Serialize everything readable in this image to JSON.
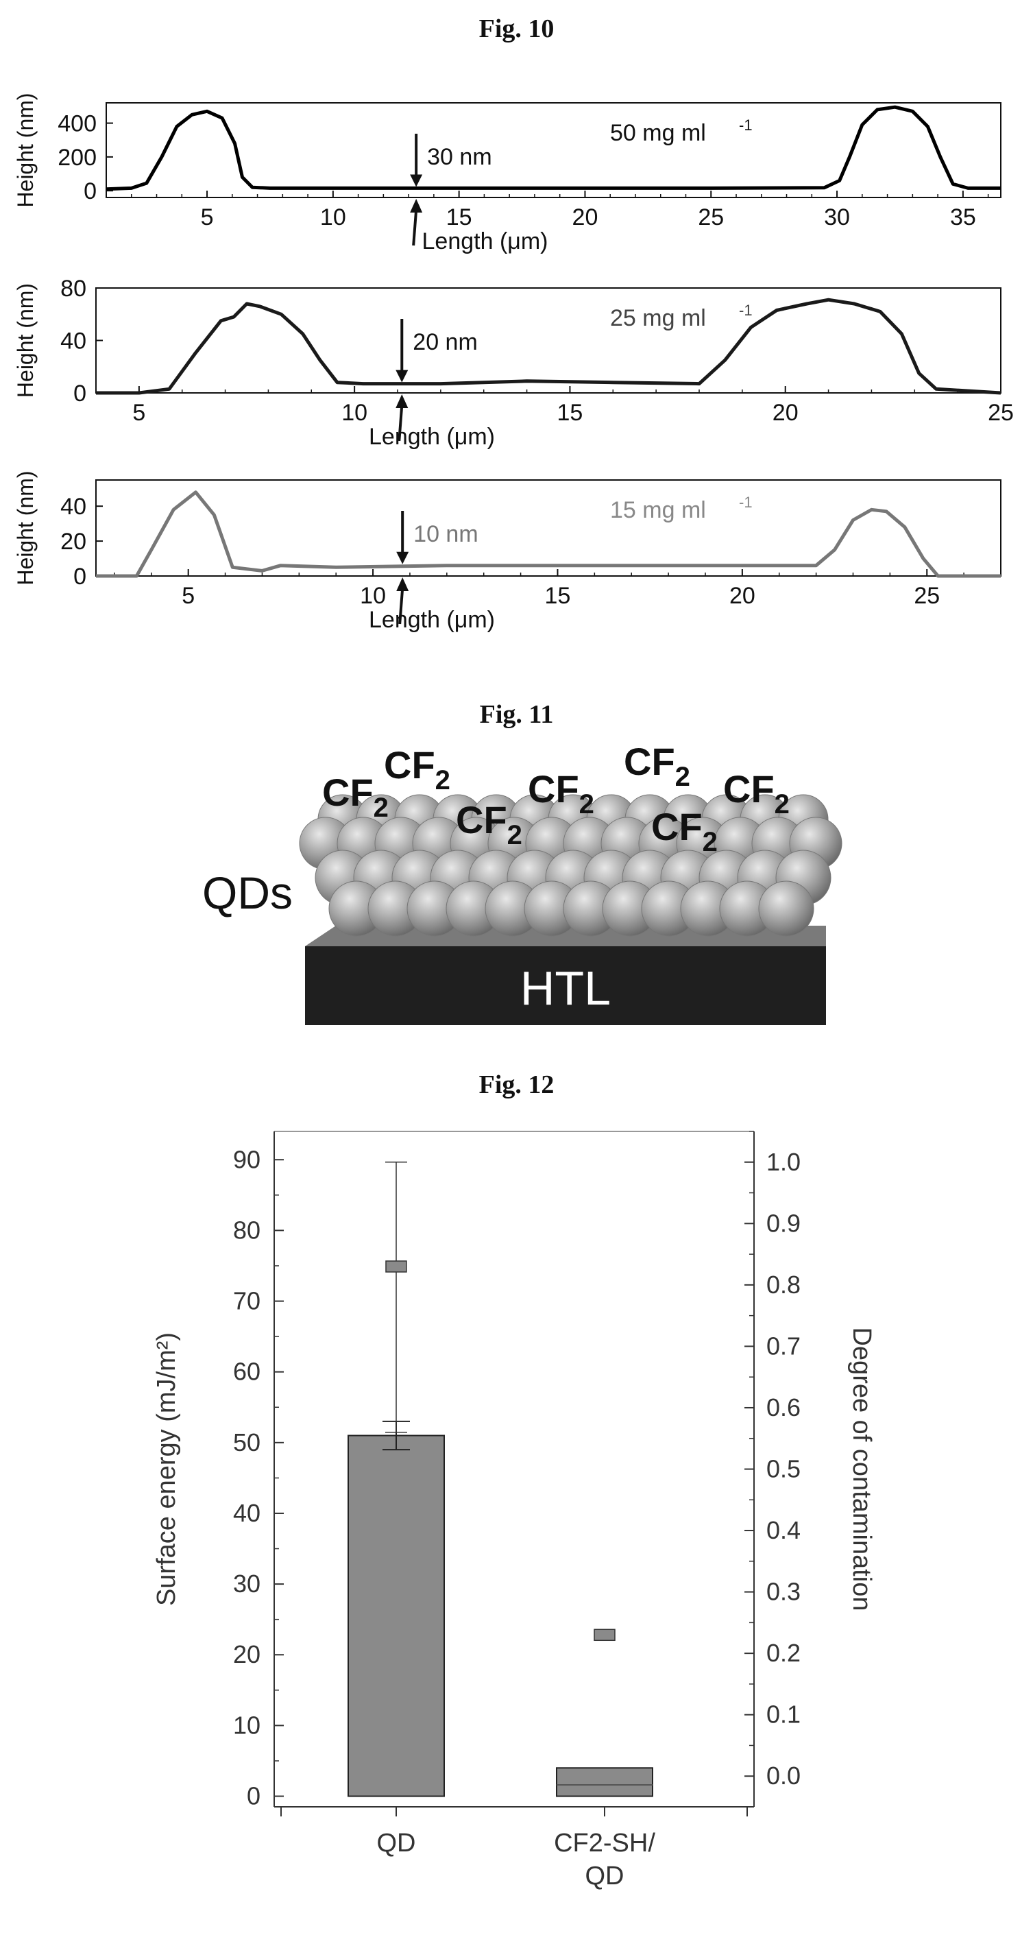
{
  "figures": {
    "fig10_title": "Fig. 10",
    "fig11_title": "Fig. 11",
    "fig12_title": "Fig. 12"
  },
  "chart_data": [
    {
      "type": "line",
      "ylabel": "Height (nm)",
      "xlabel": "Length (μm)",
      "annotation_conc": "50 mg ml",
      "annotation_exp": "-1",
      "thickness_label": "30 nm",
      "marker_x": 13.3,
      "xlim": [
        1,
        36.5
      ],
      "ylim": [
        -40,
        520
      ],
      "xticks": [
        5,
        10,
        15,
        20,
        25,
        30,
        35
      ],
      "yticks": [
        0,
        200,
        400
      ],
      "line_color": "#000000",
      "series": [
        {
          "x": [
            1,
            2,
            2.6,
            3.2,
            3.8,
            4.4,
            5,
            5.6,
            6.1,
            6.4,
            6.8,
            7.5,
            10,
            15,
            20,
            25,
            29.5,
            30.1,
            30.5,
            31,
            31.6,
            32.3,
            33,
            33.6,
            34.1,
            34.6,
            35.2,
            36.5
          ],
          "y": [
            10,
            15,
            45,
            200,
            380,
            450,
            470,
            430,
            280,
            80,
            20,
            15,
            15,
            15,
            15,
            15,
            18,
            60,
            200,
            390,
            480,
            495,
            470,
            380,
            200,
            40,
            15,
            15
          ]
        }
      ]
    },
    {
      "type": "line",
      "ylabel": "Height (nm)",
      "xlabel": "Length (μm)",
      "annotation_conc": "25 mg ml",
      "annotation_exp": "-1",
      "thickness_label": "20 nm",
      "marker_x": 11.1,
      "xlim": [
        4,
        25
      ],
      "ylim": [
        0,
        80
      ],
      "xticks": [
        5,
        10,
        15,
        20,
        25
      ],
      "yticks": [
        0,
        40,
        80
      ],
      "line_color": "#1a1a1a",
      "series": [
        {
          "x": [
            4,
            5,
            5.7,
            6.3,
            6.9,
            7.2,
            7.5,
            7.8,
            8.3,
            8.8,
            9.2,
            9.6,
            10.2,
            12,
            14,
            16,
            18,
            18.6,
            19.2,
            19.8,
            20.5,
            21,
            21.6,
            22.2,
            22.7,
            23.1,
            23.5,
            25
          ],
          "y": [
            0,
            0,
            3,
            30,
            55,
            58,
            68,
            66,
            60,
            45,
            25,
            8,
            7,
            7,
            9,
            8,
            7,
            25,
            50,
            63,
            68,
            71,
            68,
            62,
            45,
            15,
            3,
            0
          ]
        }
      ]
    },
    {
      "type": "line",
      "ylabel": "Height (nm)",
      "xlabel": "Length (μm)",
      "annotation_conc": "15 mg ml",
      "annotation_exp": "-1",
      "thickness_label": "10 nm",
      "marker_x": 10.8,
      "xlim": [
        2.5,
        27
      ],
      "ylim": [
        0,
        55
      ],
      "xticks": [
        5,
        10,
        15,
        20,
        25
      ],
      "yticks": [
        0,
        20,
        40
      ],
      "line_color": "#777777",
      "series": [
        {
          "x": [
            2.5,
            3.6,
            4,
            4.6,
            5.2,
            5.7,
            6.2,
            7,
            7.5,
            9,
            12,
            15,
            18,
            20,
            22,
            22.5,
            23,
            23.5,
            23.9,
            24.4,
            24.9,
            25.3,
            27
          ],
          "y": [
            0,
            0,
            15,
            38,
            48,
            35,
            5,
            3,
            6,
            5,
            6,
            6,
            6,
            6,
            6,
            15,
            32,
            38,
            37,
            28,
            10,
            0,
            0
          ]
        }
      ]
    },
    {
      "type": "bar",
      "categories": [
        "QD",
        "CF2-SH/\nQD"
      ],
      "category_lines": [
        [
          "QD"
        ],
        [
          "CF2-SH/",
          "QD"
        ]
      ],
      "values": [
        51,
        4
      ],
      "errors": [
        2,
        0
      ],
      "ylabel": "Surface energy (mJ/m²)",
      "y2label": "Degree of contamination",
      "ylim": [
        -1.5,
        94
      ],
      "yticks": [
        0,
        10,
        20,
        30,
        40,
        50,
        60,
        70,
        80,
        90
      ],
      "y2ticks": [
        0.0,
        0.1,
        0.2,
        0.3,
        0.4,
        0.5,
        0.6,
        0.7,
        0.8,
        0.9,
        1.0
      ],
      "y2_ticks_text": [
        "0.0",
        "0.1",
        "0.2",
        "0.3",
        "0.4",
        "0.5",
        "0.6",
        "0.7",
        "0.8",
        "0.9",
        "1.0"
      ],
      "y2lim": [
        -0.05,
        1.05
      ],
      "secondary_series": {
        "values": [
          0.83,
          0.23
        ],
        "errors_low": [
          0.27,
          0
        ],
        "errors_high": [
          0.17,
          0
        ]
      },
      "bar_color": "#8a8a8a",
      "marker_color": "#8a8a8a"
    }
  ],
  "fig11": {
    "qd_label": "QDs",
    "htl_label": "HTL",
    "ligand_main": "CF",
    "ligand_sub": "2"
  }
}
